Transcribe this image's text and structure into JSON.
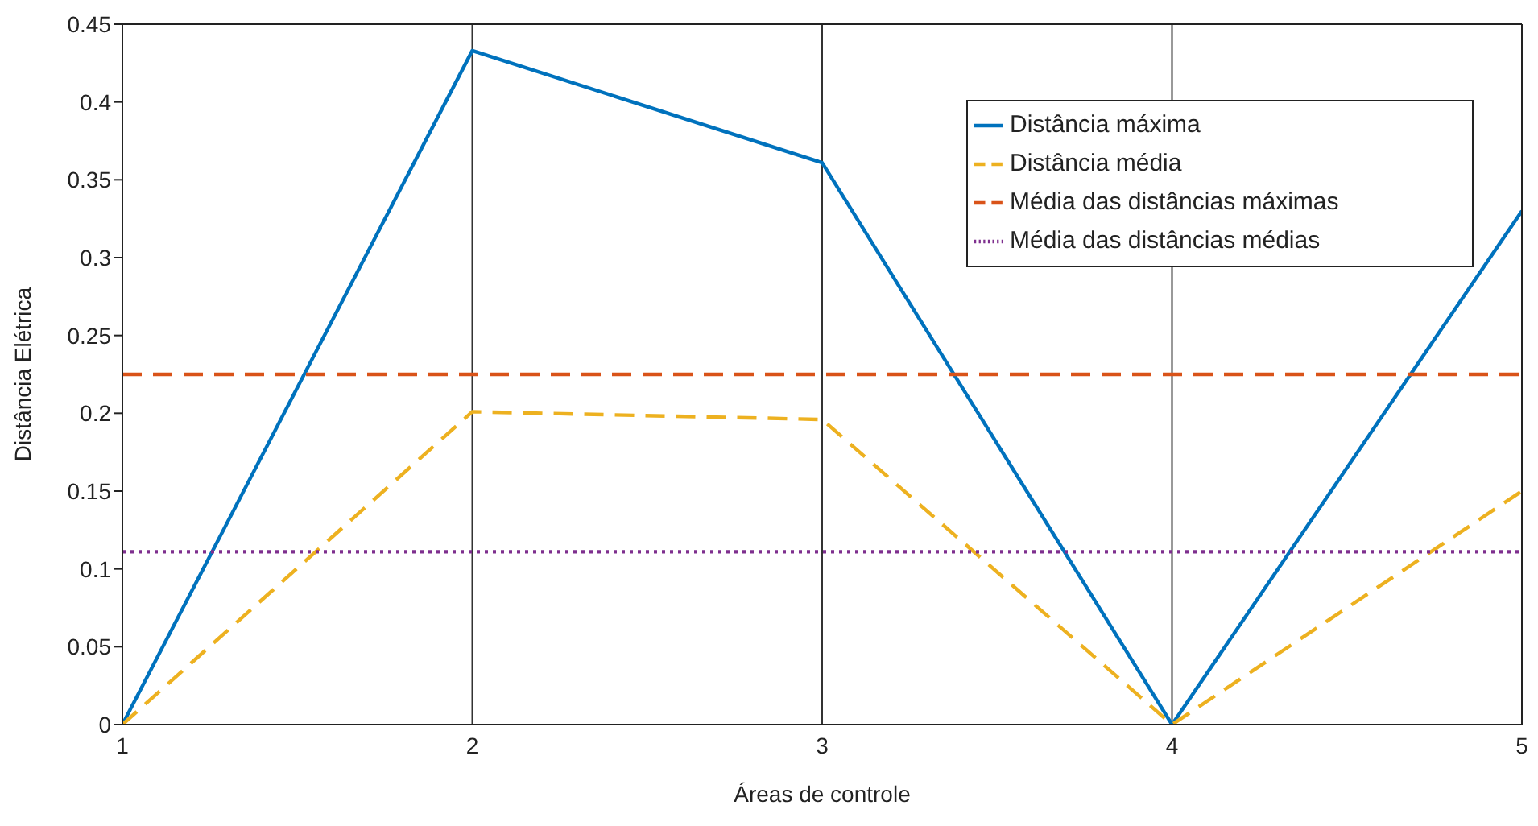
{
  "chart_data": {
    "type": "line",
    "xlabel": "Áreas de controle",
    "ylabel": "Distância Elétrica",
    "x": [
      1,
      2,
      3,
      4,
      5
    ],
    "xlim": [
      1,
      5
    ],
    "xticks": [
      1,
      2,
      3,
      4,
      5
    ],
    "ylim": [
      0,
      0.45
    ],
    "yticks": [
      0,
      0.05,
      0.1,
      0.15,
      0.2,
      0.25,
      0.3,
      0.35,
      0.4,
      0.45
    ],
    "grid": "x",
    "legend": "top right",
    "marker": "none",
    "series": [
      {
        "name": "Distância máxima",
        "color": "#0072bd",
        "line_style": "solid",
        "values": [
          0,
          0.433,
          0.361,
          0,
          0.33
        ]
      },
      {
        "name": "Média das distâncias máximas",
        "color": "#d95319",
        "line_style": "dashed",
        "values": [
          0.225,
          0.225,
          0.225,
          0.225,
          0.225
        ]
      },
      {
        "name": "Distância média",
        "color": "#edb120",
        "line_style": "dashed",
        "values": [
          0,
          0.201,
          0.196,
          0,
          0.15
        ]
      },
      {
        "name": "Média das distâncias médias",
        "color": "#7e2f8e",
        "line_style": "dotted",
        "values": [
          0.111,
          0.111,
          0.111,
          0.111,
          0.111
        ]
      }
    ]
  }
}
